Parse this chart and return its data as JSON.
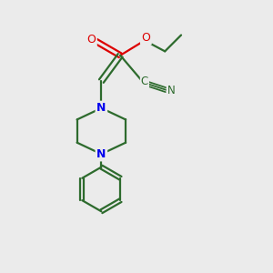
{
  "bg_color": "#ebebeb",
  "bond_color": "#2d6b2d",
  "N_color": "#0000ee",
  "O_color": "#dd0000",
  "figsize": [
    3.0,
    3.0
  ],
  "dpi": 100,
  "bond_lw": 1.6,
  "xlim": [
    0,
    10
  ],
  "ylim": [
    0,
    10
  ]
}
